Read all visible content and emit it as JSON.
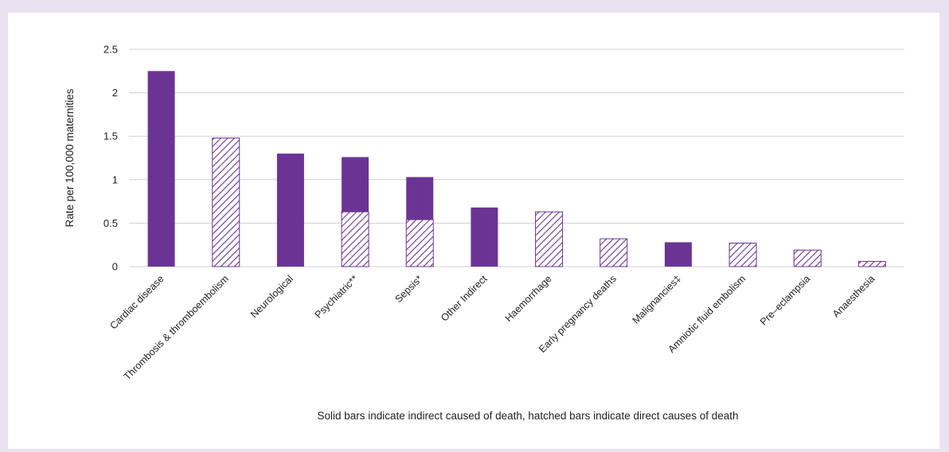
{
  "colors": {
    "background": "#e8e2f1",
    "panel": "#ffffff",
    "bar": "#6b3494",
    "grid": "#d0d0d0",
    "text": "#222222"
  },
  "chart_data": {
    "type": "bar",
    "stacked": true,
    "title": "",
    "xlabel": "Solid bars indicate indirect caused of death, hatched bars indicate direct causes of death",
    "ylabel": "Rate per 100,000 maternities",
    "ylim": [
      0,
      2.5
    ],
    "yticks": [
      "0",
      "0.5",
      "1",
      "1.5",
      "2",
      "2.5"
    ],
    "grid": true,
    "legend": "none",
    "categories": [
      "Cardiac disease",
      "Thrombosis & thromboembolism",
      "Neurological",
      "Psychiatric**",
      "Sepsis*",
      "Other Indirect",
      "Haemorrhage",
      "Early pregnancy deaths",
      "Malignancies‡",
      "Amniotic fluid embolism",
      "Pre–eclampsia",
      "Anaesthesia"
    ],
    "series": [
      {
        "style": "hatched",
        "values": [
          0,
          1.48,
          0,
          0.63,
          0.54,
          0,
          0.63,
          0.32,
          0,
          0.27,
          0.19,
          0.06
        ]
      },
      {
        "style": "solid",
        "values": [
          2.25,
          0,
          1.3,
          0.63,
          0.49,
          0.68,
          0,
          0,
          0.28,
          0,
          0,
          0
        ]
      }
    ]
  }
}
